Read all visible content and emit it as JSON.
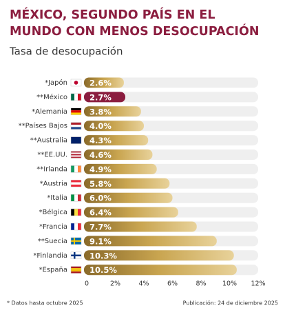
{
  "chart_data": {
    "type": "bar",
    "orientation": "horizontal",
    "title": [
      "MÉXICO, SEGUNDO PAÍS EN EL",
      "MUNDO CON MENOS DESOCUPACIÓN"
    ],
    "subtitle": "Tasa de desocupación",
    "categories": [
      "*Japón",
      "**México",
      "*Alemania",
      "**Países Bajos",
      "**Australia",
      "**EE.UU.",
      "**Irlanda",
      "*Austria",
      "*Italia",
      "*Bélgica",
      "*Francia",
      "**Suecia",
      "*Finlandia",
      "*España"
    ],
    "values": [
      2.6,
      2.7,
      3.8,
      4.0,
      4.3,
      4.6,
      4.9,
      5.8,
      6.0,
      6.4,
      7.7,
      9.1,
      10.3,
      10.5
    ],
    "value_labels": [
      "2.6%",
      "2.7%",
      "3.8%",
      "4.0%",
      "4.3%",
      "4.6%",
      "4.9%",
      "5.8%",
      "6.0%",
      "6.4%",
      "7.7%",
      "9.1%",
      "10.3%",
      "10.5%"
    ],
    "colors": [
      "#c9a550",
      "#8b1d3f",
      "#c9a550",
      "#c9a550",
      "#c9a550",
      "#c9a550",
      "#c9a550",
      "#c9a550",
      "#c9a550",
      "#c9a550",
      "#c9a550",
      "#c9a550",
      "#c9a550",
      "#c9a550"
    ],
    "xlim": [
      0,
      12
    ],
    "xticks": [
      {
        "value": 0,
        "label": "0"
      },
      {
        "value": 2,
        "label": "2%"
      },
      {
        "value": 4,
        "label": "4%"
      },
      {
        "value": 6,
        "label": "6%"
      },
      {
        "value": 8,
        "label": "8%"
      },
      {
        "value": 10,
        "label": "10%"
      },
      {
        "value": 12,
        "label": "12%"
      }
    ],
    "notes": [
      "* Datos hasta octubre 2025",
      "Publicación: 24 de diciembre 2025"
    ]
  }
}
